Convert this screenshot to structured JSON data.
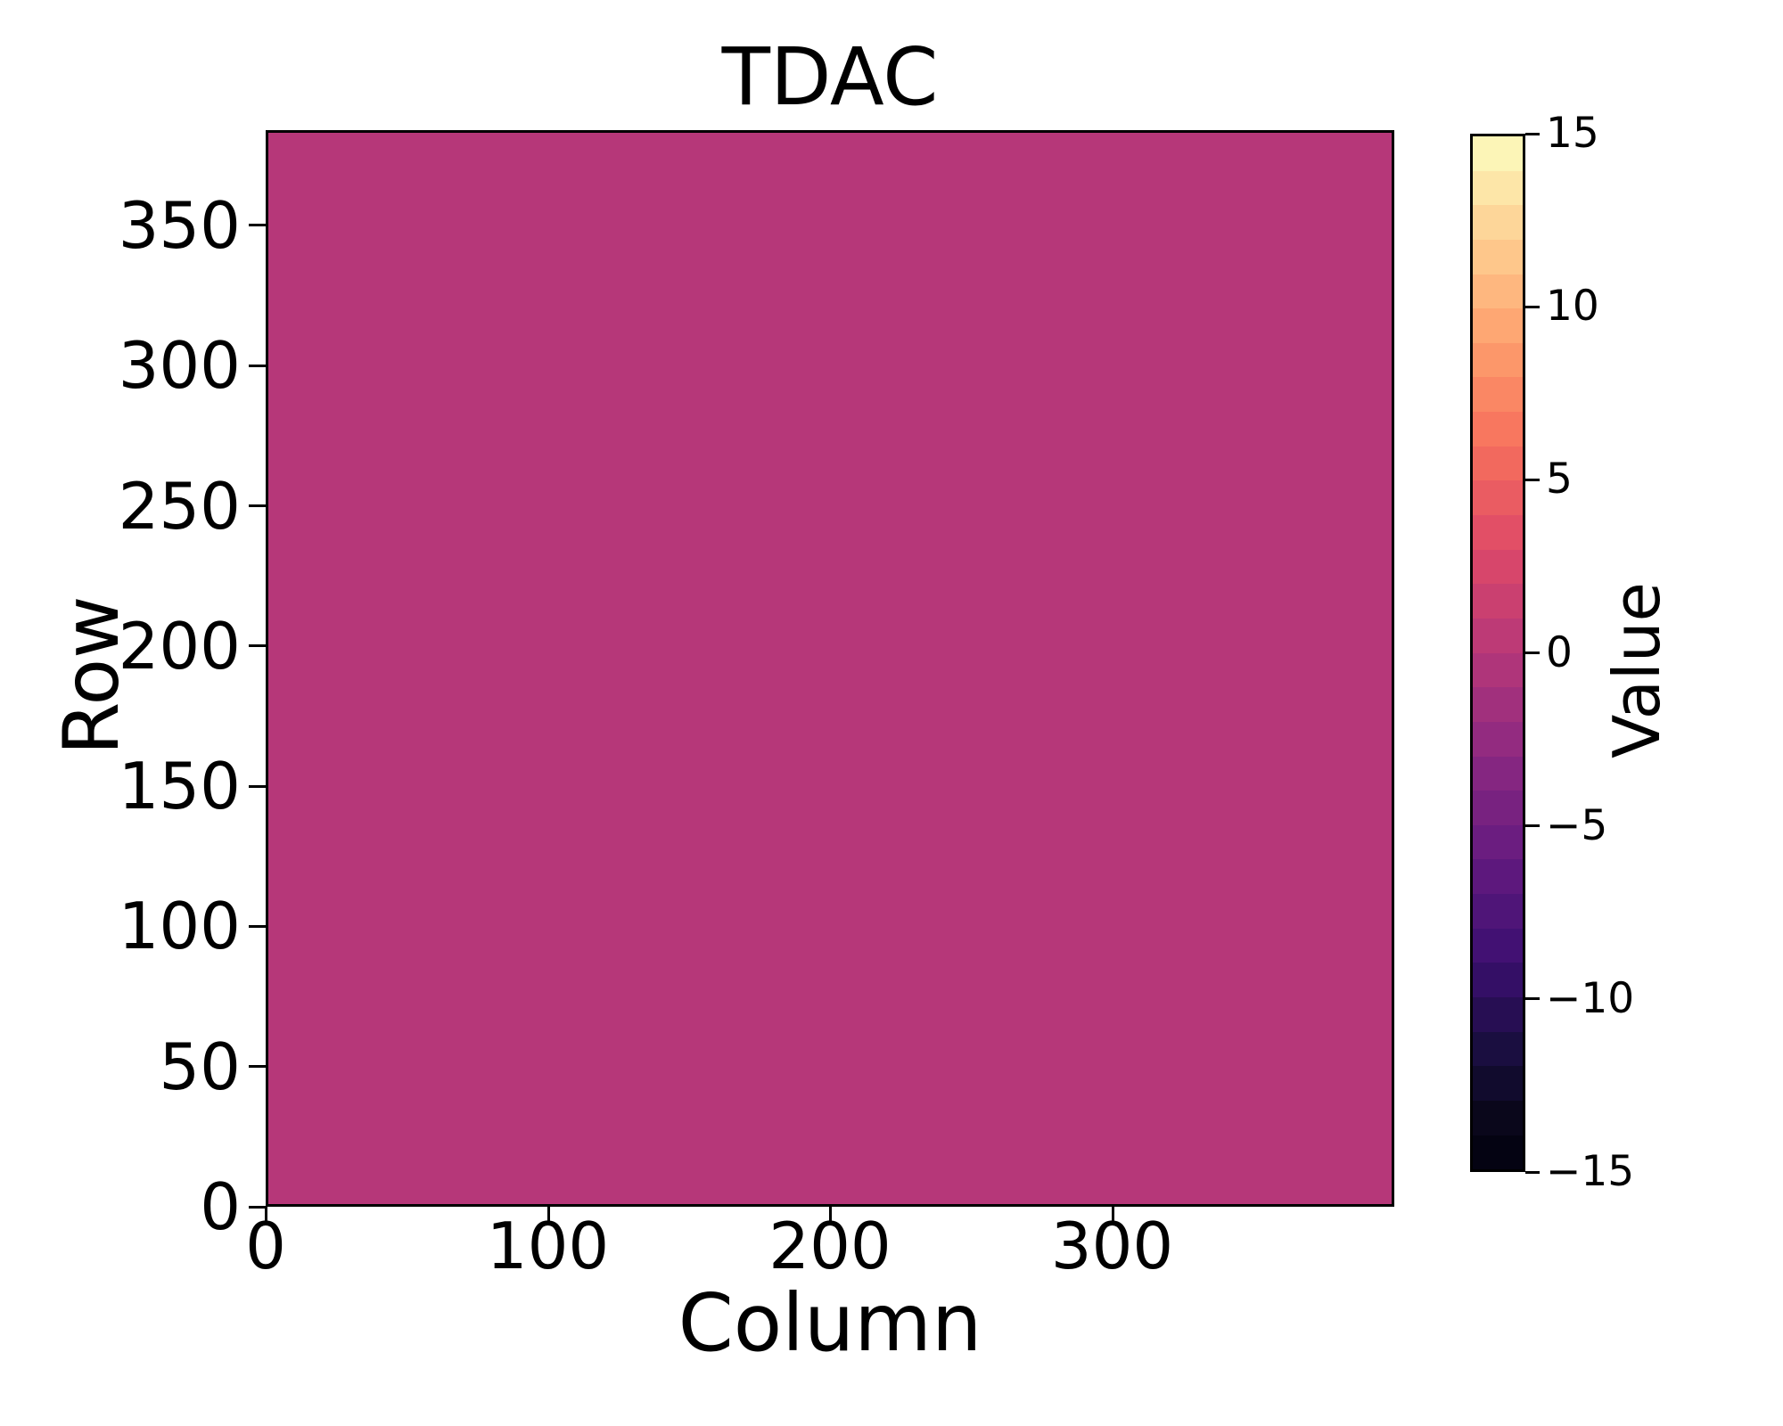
{
  "title": "TDAC",
  "axes": {
    "xlabel": "Column",
    "ylabel": "Row",
    "x_tick_labels": [
      "0",
      "100",
      "200",
      "300"
    ],
    "y_tick_labels": [
      "0",
      "50",
      "100",
      "150",
      "200",
      "250",
      "300",
      "350"
    ]
  },
  "colorbar": {
    "label": "Value",
    "tick_labels": [
      "15",
      "10",
      "5",
      "0",
      "−5",
      "−10",
      "−15"
    ],
    "band_colors_bottom_to_top": [
      "#040312",
      "#0a071b",
      "#110b2d",
      "#1a0e40",
      "#270e53",
      "#340f66",
      "#421173",
      "#4f1578",
      "#5d187d",
      "#6b1d80",
      "#782280",
      "#852681",
      "#932b80",
      "#a1307d",
      "#af357a",
      "#bd3a76",
      "#ca4070",
      "#d7466b",
      "#e24f66",
      "#ea5c62",
      "#f2695e",
      "#f8775f",
      "#fa8764",
      "#fc976a",
      "#fea773",
      "#feb77f",
      "#fec78b",
      "#fdd699",
      "#fde6a8",
      "#fcf5b7"
    ]
  },
  "chart_data": {
    "type": "heatmap",
    "title": "TDAC",
    "xlabel": "Column",
    "ylabel": "Row",
    "colorbar_label": "Value",
    "xlim": [
      0,
      400
    ],
    "ylim": [
      0,
      384
    ],
    "x_ticks": [
      0,
      100,
      200,
      300
    ],
    "y_ticks": [
      0,
      50,
      100,
      150,
      200,
      250,
      300,
      350
    ],
    "colorbar_ticks": [
      15,
      10,
      5,
      0,
      -5,
      -10,
      -15
    ],
    "value_range": [
      -15,
      15
    ],
    "colormap": "magma",
    "n_color_levels": 30,
    "grid": false,
    "legend": "colorbar-right",
    "uniform_value": 0,
    "uniform_fill_color": "#b63779",
    "data_description": "All 400 columns x 384 rows share a single TDAC value of 0 (uniform map)."
  }
}
